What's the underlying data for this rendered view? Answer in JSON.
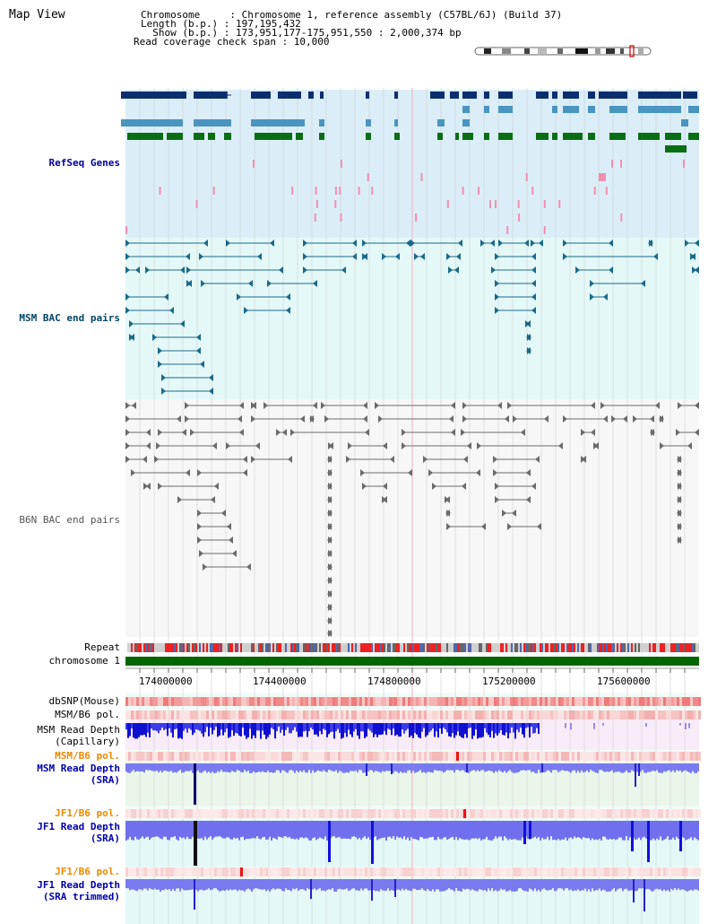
{
  "header": {
    "title": "Map View",
    "line1": "Chromosome     : Chromosome 1, reference assembly (C57BL/6J) (Build 37)",
    "line2": "Length (b.p.) : 197,195,432",
    "line3": "  Show (b.p.) : 173,951,177-175,951,550 : 2,000,374 bp",
    "line4": "Read coverage check span : 10,000"
  },
  "tracks": {
    "refseq": "RefSeq Genes",
    "msm_bac": "MSM BAC end pairs",
    "b6n_bac": "B6N BAC end pairs",
    "repeat": "Repeat",
    "chromosome": "chromosome 1",
    "dbsnp": "dbSNP(Mouse)",
    "msm_pol1": "MSM/B6 pol.",
    "msm_depth_cap_1": "MSM Read Depth",
    "msm_depth_cap_2": "(Capillary)",
    "msm_pol2": "MSM/B6 pol.",
    "msm_depth_sra_1": "MSM Read Depth",
    "msm_depth_sra_2": "(SRA)",
    "jf1_pol1": "JF1/B6 pol.",
    "jf1_depth_sra_1": "JF1 Read Depth",
    "jf1_depth_sra_2": "(SRA)",
    "jf1_pol2": "JF1/B6 pol.",
    "jf1_depth_trim_1": "JF1 Read Depth",
    "jf1_depth_trim_2": "(SRA trimmed)"
  },
  "axis": {
    "ticks": [
      "174000000",
      "174400000",
      "174800000",
      "175200000",
      "175600000"
    ]
  },
  "colors": {
    "refseq_label": "#000099",
    "msm_label": "#004466",
    "b6n_label": "#555555",
    "pol_orange": "#ee8800",
    "depth_blue": "#0000aa",
    "refseq_bg": "#dbeef8",
    "msm_bg": "#e4f8f8",
    "chromosome_green": "#006600"
  }
}
